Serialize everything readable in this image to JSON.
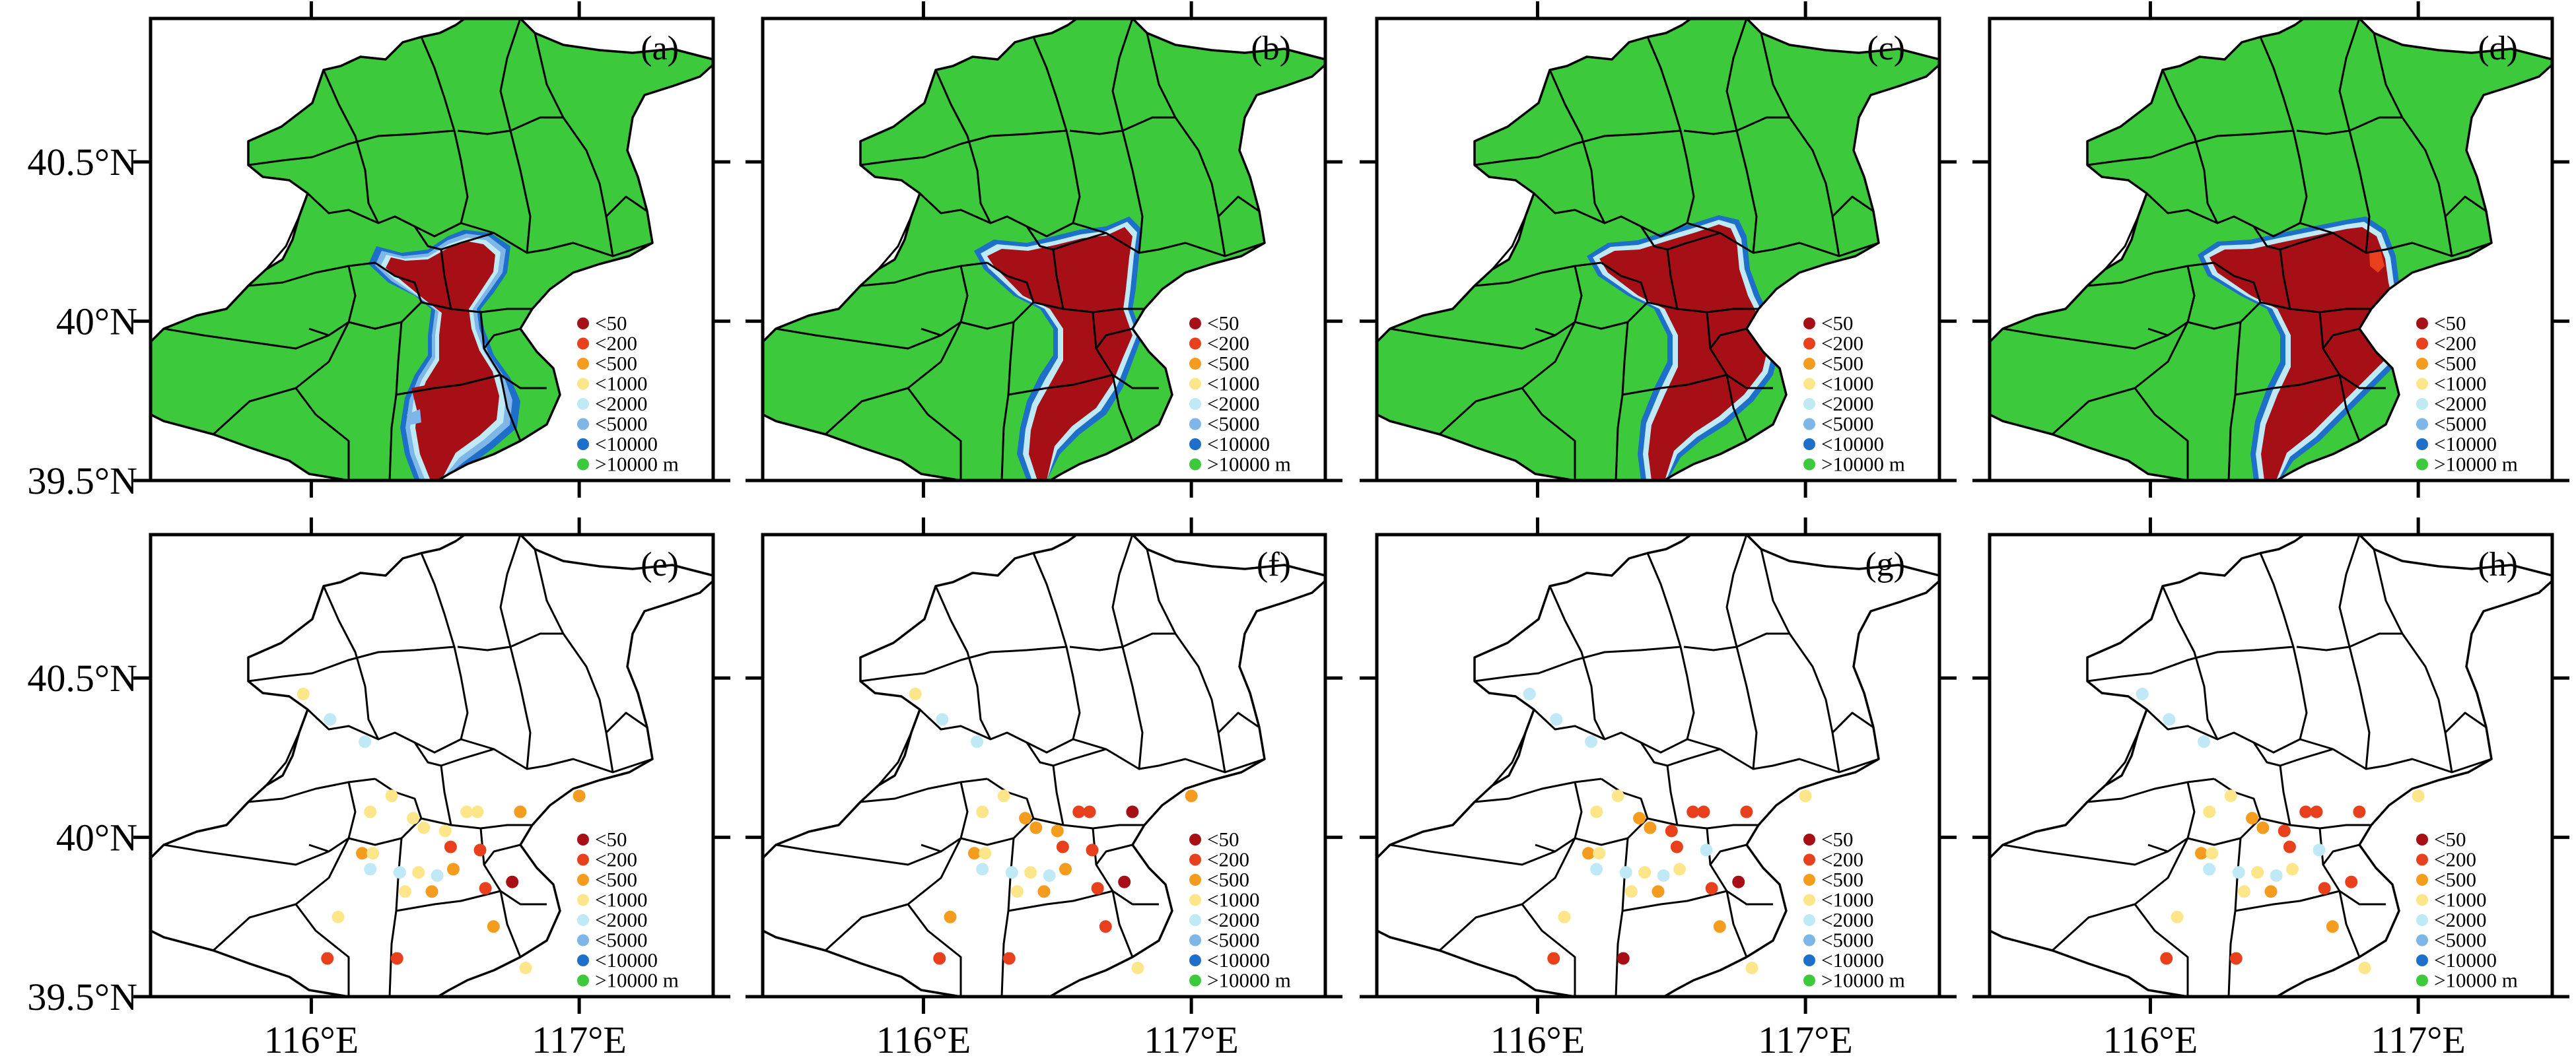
{
  "chart_data": {
    "type": "map",
    "layout": {
      "rows": 2,
      "cols": 4
    },
    "lon_range": [
      115.4,
      117.5
    ],
    "lat_range": [
      39.5,
      40.95
    ],
    "lon_ticks": [
      "116°E",
      "117°E"
    ],
    "lat_ticks": [
      "40.5°N",
      "40°N",
      "39.5°N"
    ],
    "legend": {
      "position": "bottom-right",
      "entries": [
        {
          "label": "<50",
          "color": "#a50f15"
        },
        {
          "label": "<200",
          "color": "#e8401c"
        },
        {
          "label": "<500",
          "color": "#f39c1e"
        },
        {
          "label": "<1000",
          "color": "#fde68a"
        },
        {
          "label": "<2000",
          "color": "#bfe9f5"
        },
        {
          "label": "<5000",
          "color": "#7fb6e8"
        },
        {
          "label": "<10000",
          "color": "#1e6fc9"
        },
        {
          "label": ">10000 m",
          "color": "#3cc93c"
        }
      ]
    },
    "panels": [
      {
        "label": "(a)",
        "kind": "field"
      },
      {
        "label": "(b)",
        "kind": "field"
      },
      {
        "label": "(c)",
        "kind": "field"
      },
      {
        "label": "(d)",
        "kind": "field"
      },
      {
        "label": "(e)",
        "kind": "stations"
      },
      {
        "label": "(f)",
        "kind": "stations"
      },
      {
        "label": "(g)",
        "kind": "stations"
      },
      {
        "label": "(h)",
        "kind": "stations"
      }
    ],
    "stations": [
      {
        "lon": 115.97,
        "lat": 40.45
      },
      {
        "lon": 116.07,
        "lat": 40.37
      },
      {
        "lon": 116.2,
        "lat": 40.3
      },
      {
        "lon": 116.3,
        "lat": 40.13
      },
      {
        "lon": 116.22,
        "lat": 40.08
      },
      {
        "lon": 116.38,
        "lat": 40.06
      },
      {
        "lon": 116.42,
        "lat": 40.03
      },
      {
        "lon": 116.5,
        "lat": 40.02
      },
      {
        "lon": 116.58,
        "lat": 40.08
      },
      {
        "lon": 116.62,
        "lat": 40.08
      },
      {
        "lon": 116.78,
        "lat": 40.08
      },
      {
        "lon": 117.0,
        "lat": 40.13
      },
      {
        "lon": 116.19,
        "lat": 39.95
      },
      {
        "lon": 116.23,
        "lat": 39.95
      },
      {
        "lon": 116.52,
        "lat": 39.97
      },
      {
        "lon": 116.63,
        "lat": 39.96
      },
      {
        "lon": 116.22,
        "lat": 39.9
      },
      {
        "lon": 116.33,
        "lat": 39.89
      },
      {
        "lon": 116.4,
        "lat": 39.89
      },
      {
        "lon": 116.47,
        "lat": 39.88
      },
      {
        "lon": 116.53,
        "lat": 39.9
      },
      {
        "lon": 116.35,
        "lat": 39.83
      },
      {
        "lon": 116.45,
        "lat": 39.83
      },
      {
        "lon": 116.65,
        "lat": 39.84
      },
      {
        "lon": 116.75,
        "lat": 39.86
      },
      {
        "lon": 116.1,
        "lat": 39.75
      },
      {
        "lon": 116.68,
        "lat": 39.72
      },
      {
        "lon": 116.06,
        "lat": 39.62
      },
      {
        "lon": 116.32,
        "lat": 39.62
      },
      {
        "lon": 116.8,
        "lat": 39.59
      }
    ],
    "station_classes": {
      "(e)": [
        3,
        4,
        4,
        3,
        3,
        3,
        3,
        3,
        3,
        3,
        2,
        2,
        2,
        3,
        1,
        1,
        4,
        4,
        3,
        4,
        2,
        3,
        2,
        1,
        0,
        3,
        2,
        1,
        1,
        3
      ],
      "(f)": [
        3,
        4,
        4,
        3,
        3,
        2,
        2,
        2,
        1,
        1,
        0,
        2,
        2,
        3,
        1,
        1,
        4,
        4,
        3,
        4,
        2,
        3,
        2,
        1,
        0,
        2,
        1,
        1,
        1,
        3
      ],
      "(g)": [
        4,
        4,
        4,
        3,
        3,
        2,
        2,
        1,
        1,
        1,
        1,
        3,
        2,
        3,
        1,
        4,
        4,
        4,
        3,
        4,
        3,
        3,
        2,
        1,
        0,
        3,
        2,
        1,
        0,
        3
      ],
      "(h)": [
        4,
        4,
        4,
        3,
        3,
        2,
        2,
        1,
        1,
        1,
        1,
        3,
        2,
        3,
        1,
        4,
        4,
        4,
        3,
        4,
        3,
        3,
        2,
        1,
        1,
        3,
        2,
        1,
        1,
        3
      ]
    }
  }
}
